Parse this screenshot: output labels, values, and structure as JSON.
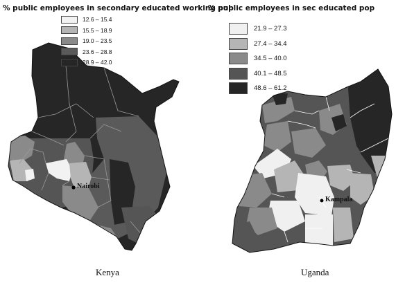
{
  "kenya": {
    "title": "% public employees in secondary educated working pop",
    "legend": [
      {
        "label": "12.6 – 15.4",
        "color": "#f2f2f2"
      },
      {
        "label": "15.5 – 18.9",
        "color": "#b5b5b5"
      },
      {
        "label": "19.0 – 23.5",
        "color": "#8a8a8a"
      },
      {
        "label": "23.6 – 28.8",
        "color": "#5a5a5a"
      },
      {
        "label": "28.9 – 42.0",
        "color": "#262626"
      }
    ],
    "city": "Nairobi",
    "caption": "Kenya"
  },
  "uganda": {
    "title": "% public employees in sec educated pop",
    "legend": [
      {
        "label": "21.9 – 27.3",
        "color": "#f0f0f0"
      },
      {
        "label": "27.4 – 34.4",
        "color": "#b5b5b5"
      },
      {
        "label": "34.5 – 40.0",
        "color": "#8a8a8a"
      },
      {
        "label": "40.1 – 48.5",
        "color": "#555555"
      },
      {
        "label": "48.6 – 61.2",
        "color": "#262626"
      }
    ],
    "city": "Kampala",
    "caption": "Uganda"
  }
}
